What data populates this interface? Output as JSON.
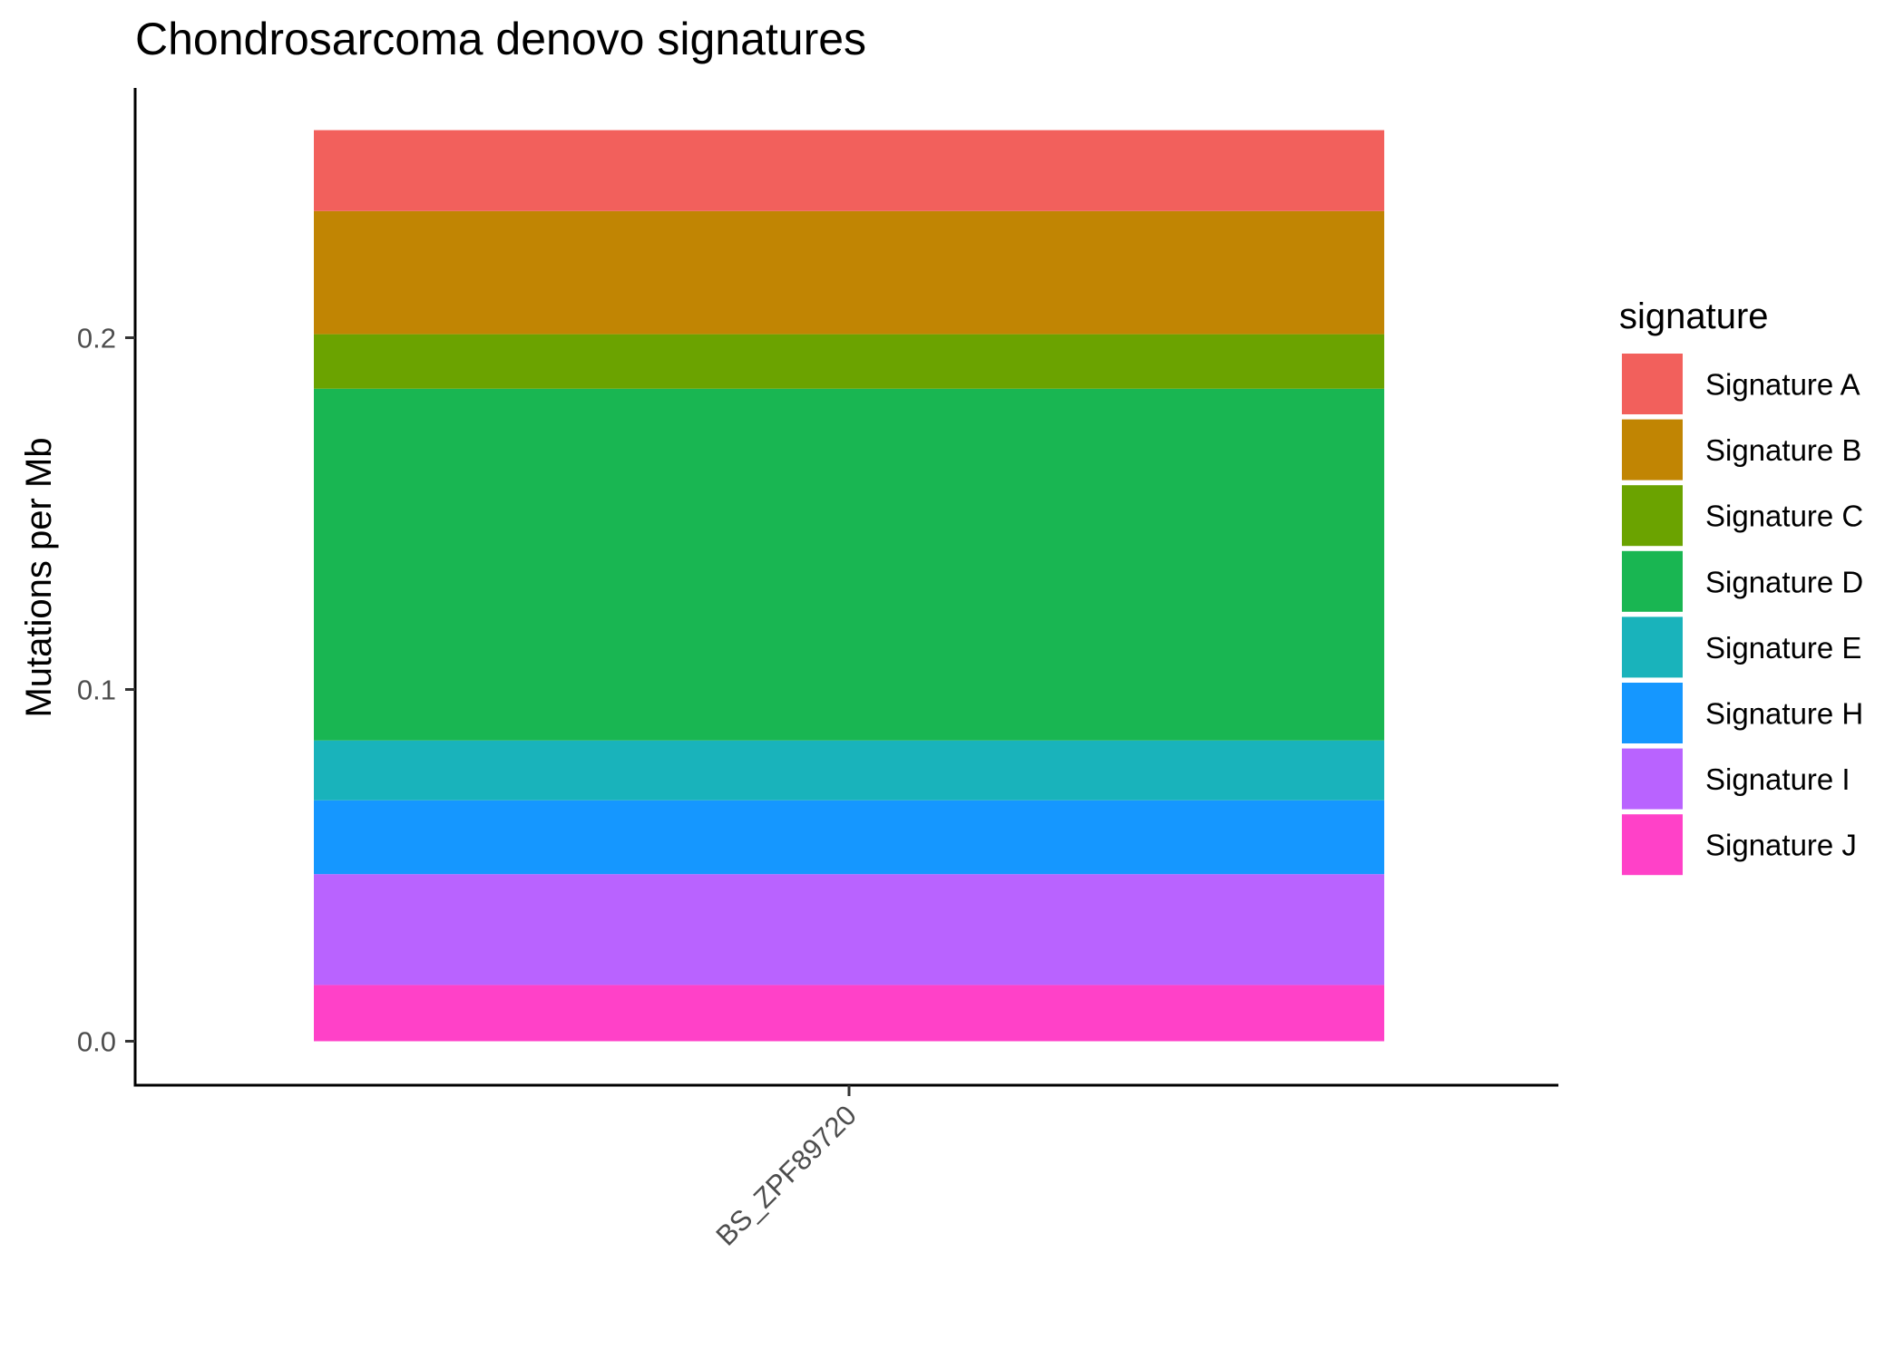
{
  "chart_data": {
    "type": "bar",
    "stacked": true,
    "title": "Chondrosarcoma denovo signatures",
    "ylabel": "Mutations per Mb",
    "xlabel": "",
    "categories": [
      "BS_ZPF89720"
    ],
    "ylim": [
      -0.0125,
      0.271
    ],
    "yticks": [
      "0.0",
      "0.1",
      "0.2"
    ],
    "yticks_values": [
      0.0,
      0.1,
      0.2
    ],
    "grid": false,
    "legend": {
      "title": "signature",
      "position": "right"
    },
    "series": [
      {
        "name": "Signature J",
        "values": [
          0.016
        ],
        "color": "#FF41C8"
      },
      {
        "name": "Signature I",
        "values": [
          0.0315
        ],
        "color": "#B963FF"
      },
      {
        "name": "Signature H",
        "values": [
          0.021
        ],
        "color": "#1597FF"
      },
      {
        "name": "Signature E",
        "values": [
          0.017
        ],
        "color": "#19B3BB"
      },
      {
        "name": "Signature D",
        "values": [
          0.1
        ],
        "color": "#19B652"
      },
      {
        "name": "Signature C",
        "values": [
          0.0155
        ],
        "color": "#6BA300"
      },
      {
        "name": "Signature B",
        "values": [
          0.035
        ],
        "color": "#C18503"
      },
      {
        "name": "Signature A",
        "values": [
          0.023
        ],
        "color": "#F2605C"
      }
    ],
    "legend_order": [
      "Signature A",
      "Signature B",
      "Signature C",
      "Signature D",
      "Signature E",
      "Signature H",
      "Signature I",
      "Signature J"
    ]
  }
}
